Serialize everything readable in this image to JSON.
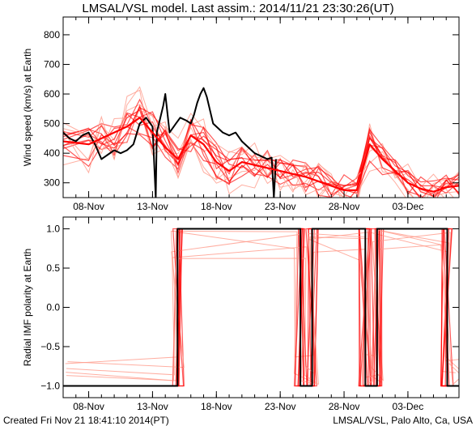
{
  "title": "LMSAL/VSL model. Last assim.: 2014/11/21 23:30:26(UT)",
  "footer": {
    "created": "Created Fri Nov 21 18:41:10 2014(PT)",
    "credit": "LMSAL/VSL, Palo Alto, Ca, USA"
  },
  "colors": {
    "observed": "#000000",
    "ensemble": "#ff0000",
    "ensemble_faint": "#ff9a8a",
    "background": "#ffffff"
  },
  "chart_data": [
    {
      "type": "line",
      "ylabel": "Wind speed (km/s) at Earth",
      "xlim": [
        "2014-11-06",
        "2014-12-07"
      ],
      "ylim": [
        250,
        860
      ],
      "x_ticks": [
        {
          "date": "2014-11-08",
          "label": "08-Nov"
        },
        {
          "date": "2014-11-13",
          "label": "13-Nov"
        },
        {
          "date": "2014-11-18",
          "label": "18-Nov"
        },
        {
          "date": "2014-11-23",
          "label": "23-Nov"
        },
        {
          "date": "2014-11-28",
          "label": "28-Nov"
        },
        {
          "date": "2014-12-03",
          "label": "03-Dec"
        }
      ],
      "y_ticks": [
        {
          "value": 300,
          "label": "300"
        },
        {
          "value": 400,
          "label": "400"
        },
        {
          "value": 500,
          "label": "500"
        },
        {
          "value": 600,
          "label": "600"
        },
        {
          "value": 700,
          "label": "700"
        },
        {
          "value": 800,
          "label": "800"
        }
      ],
      "series": [
        {
          "role": "observed",
          "color": "#000000",
          "points": [
            [
              "2014-11-06T00:00",
              470
            ],
            [
              "2014-11-06T12:00",
              450
            ],
            [
              "2014-11-07T00:00",
              440
            ],
            [
              "2014-11-07T12:00",
              460
            ],
            [
              "2014-11-08T00:00",
              470
            ],
            [
              "2014-11-08T12:00",
              430
            ],
            [
              "2014-11-09T00:00",
              380
            ],
            [
              "2014-11-09T12:00",
              395
            ],
            [
              "2014-11-10T00:00",
              410
            ],
            [
              "2014-11-10T12:00",
              400
            ],
            [
              "2014-11-11T00:00",
              410
            ],
            [
              "2014-11-11T12:00",
              430
            ],
            [
              "2014-11-12T00:00",
              500
            ],
            [
              "2014-11-12T12:00",
              520
            ],
            [
              "2014-11-13T00:00",
              490
            ],
            [
              "2014-11-13T06:00",
              250
            ],
            [
              "2014-11-13T08:00",
              470
            ],
            [
              "2014-11-13T20:00",
              560
            ],
            [
              "2014-11-14T00:00",
              600
            ],
            [
              "2014-11-14T08:00",
              470
            ],
            [
              "2014-11-14T20:00",
              500
            ],
            [
              "2014-11-15T04:00",
              520
            ],
            [
              "2014-11-15T16:00",
              510
            ],
            [
              "2014-11-16T00:00",
              500
            ],
            [
              "2014-11-16T06:00",
              530
            ],
            [
              "2014-11-16T12:00",
              570
            ],
            [
              "2014-11-16T18:00",
              600
            ],
            [
              "2014-11-17T00:00",
              620
            ],
            [
              "2014-11-17T06:00",
              590
            ],
            [
              "2014-11-17T18:00",
              500
            ],
            [
              "2014-11-18T12:00",
              470
            ],
            [
              "2014-11-19T00:00",
              460
            ],
            [
              "2014-11-19T12:00",
              470
            ],
            [
              "2014-11-20T00:00",
              440
            ],
            [
              "2014-11-20T12:00",
              420
            ],
            [
              "2014-11-21T00:00",
              400
            ],
            [
              "2014-11-21T12:00",
              390
            ],
            [
              "2014-11-22T00:00",
              380
            ],
            [
              "2014-11-22T08:00",
              385
            ],
            [
              "2014-11-22T12:00",
              250
            ],
            [
              "2014-11-22T16:00",
              380
            ]
          ]
        },
        {
          "role": "model",
          "color": "#ff0000",
          "points": [
            [
              "2014-11-06",
              440
            ],
            [
              "2014-11-08",
              430
            ],
            [
              "2014-11-09",
              450
            ],
            [
              "2014-11-10",
              470
            ],
            [
              "2014-11-11",
              490
            ],
            [
              "2014-11-12",
              520
            ],
            [
              "2014-11-13",
              470
            ],
            [
              "2014-11-14",
              420
            ],
            [
              "2014-11-15",
              380
            ],
            [
              "2014-11-16",
              460
            ],
            [
              "2014-11-17",
              430
            ],
            [
              "2014-11-18",
              370
            ],
            [
              "2014-11-19",
              340
            ],
            [
              "2014-11-20",
              370
            ],
            [
              "2014-11-21",
              360
            ],
            [
              "2014-11-22",
              350
            ],
            [
              "2014-11-23",
              340
            ],
            [
              "2014-11-24",
              330
            ],
            [
              "2014-11-25",
              320
            ],
            [
              "2014-11-26",
              305
            ],
            [
              "2014-11-27",
              290
            ],
            [
              "2014-11-28",
              275
            ],
            [
              "2014-11-29",
              275
            ],
            [
              "2014-11-30",
              430
            ],
            [
              "2014-12-01",
              380
            ],
            [
              "2014-12-02",
              340
            ],
            [
              "2014-12-03",
              300
            ],
            [
              "2014-12-04",
              280
            ],
            [
              "2014-12-05",
              270
            ],
            [
              "2014-12-06",
              285
            ],
            [
              "2014-12-07",
              290
            ]
          ]
        }
      ]
    },
    {
      "type": "line",
      "ylabel": "Radial IMF polarity at Earth",
      "xlim": [
        "2014-11-06",
        "2014-12-07"
      ],
      "ylim": [
        -1.15,
        1.15
      ],
      "x_ticks": [
        {
          "date": "2014-11-08",
          "label": "08-Nov"
        },
        {
          "date": "2014-11-13",
          "label": "13-Nov"
        },
        {
          "date": "2014-11-18",
          "label": "18-Nov"
        },
        {
          "date": "2014-11-23",
          "label": "23-Nov"
        },
        {
          "date": "2014-11-28",
          "label": "28-Nov"
        },
        {
          "date": "2014-12-03",
          "label": "03-Dec"
        }
      ],
      "y_ticks": [
        {
          "value": 1.0,
          "label": "1.0"
        },
        {
          "value": 0.5,
          "label": "0.5"
        },
        {
          "value": 0.0,
          "label": "0.0"
        },
        {
          "value": -0.5,
          "label": "−0.5"
        },
        {
          "value": -1.0,
          "label": "−1.0"
        }
      ],
      "series": [
        {
          "role": "model",
          "color": "#000000",
          "points": [
            [
              "2014-11-06T00:00",
              -1
            ],
            [
              "2014-11-14T23:00",
              -1
            ],
            [
              "2014-11-14T23:00",
              1
            ],
            [
              "2014-11-24T14:00",
              1
            ],
            [
              "2014-11-24T14:00",
              -1
            ],
            [
              "2014-11-25T12:00",
              -1
            ],
            [
              "2014-11-25T12:00",
              1
            ],
            [
              "2014-11-29T16:00",
              1
            ],
            [
              "2014-11-29T16:00",
              -1
            ],
            [
              "2014-11-30T14:00",
              -1
            ],
            [
              "2014-11-30T14:00",
              1
            ],
            [
              "2014-12-06T02:00",
              1
            ],
            [
              "2014-12-06T02:00",
              -1
            ],
            [
              "2014-12-07T00:00",
              -1
            ]
          ]
        }
      ]
    }
  ]
}
